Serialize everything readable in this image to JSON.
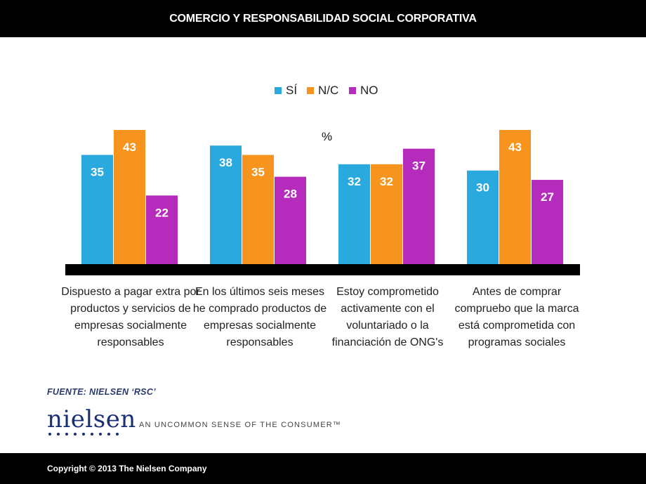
{
  "header": {
    "title": "COMERCIO Y RESPONSABILIDAD SOCIAL CORPORATIVA"
  },
  "footer": {
    "copyright": "Copyright © 2013 The Nielsen Company"
  },
  "source": "FUENTE: NIELSEN ‘RSC’",
  "brand": {
    "logo_text": "nielsen",
    "tagline": "AN UNCOMMON SENSE OF THE CONSUMER™"
  },
  "colors": {
    "si": "#2aa9df",
    "nc": "#f7941e",
    "no": "#b52cbd",
    "axis": "#000000"
  },
  "chart_data": {
    "type": "bar",
    "unit_label": "%",
    "categories": [
      "Dispuesto a pagar extra por productos y servicios de empresas socialmente responsables",
      "En los últimos seis meses he comprado productos de empresas socialmente responsables",
      "Estoy comprometido activamente con el voluntariado o la financiación de ONG's",
      "Antes de comprar compruebo que la marca está comprometida con programas sociales"
    ],
    "series": [
      {
        "name": "SÍ",
        "values": [
          35,
          38,
          32,
          30
        ]
      },
      {
        "name": "N/C",
        "values": [
          43,
          35,
          32,
          43
        ]
      },
      {
        "name": "NO",
        "values": [
          22,
          28,
          37,
          27
        ]
      }
    ],
    "ylim": [
      0,
      43
    ],
    "grid": false,
    "legend": "top-center"
  }
}
